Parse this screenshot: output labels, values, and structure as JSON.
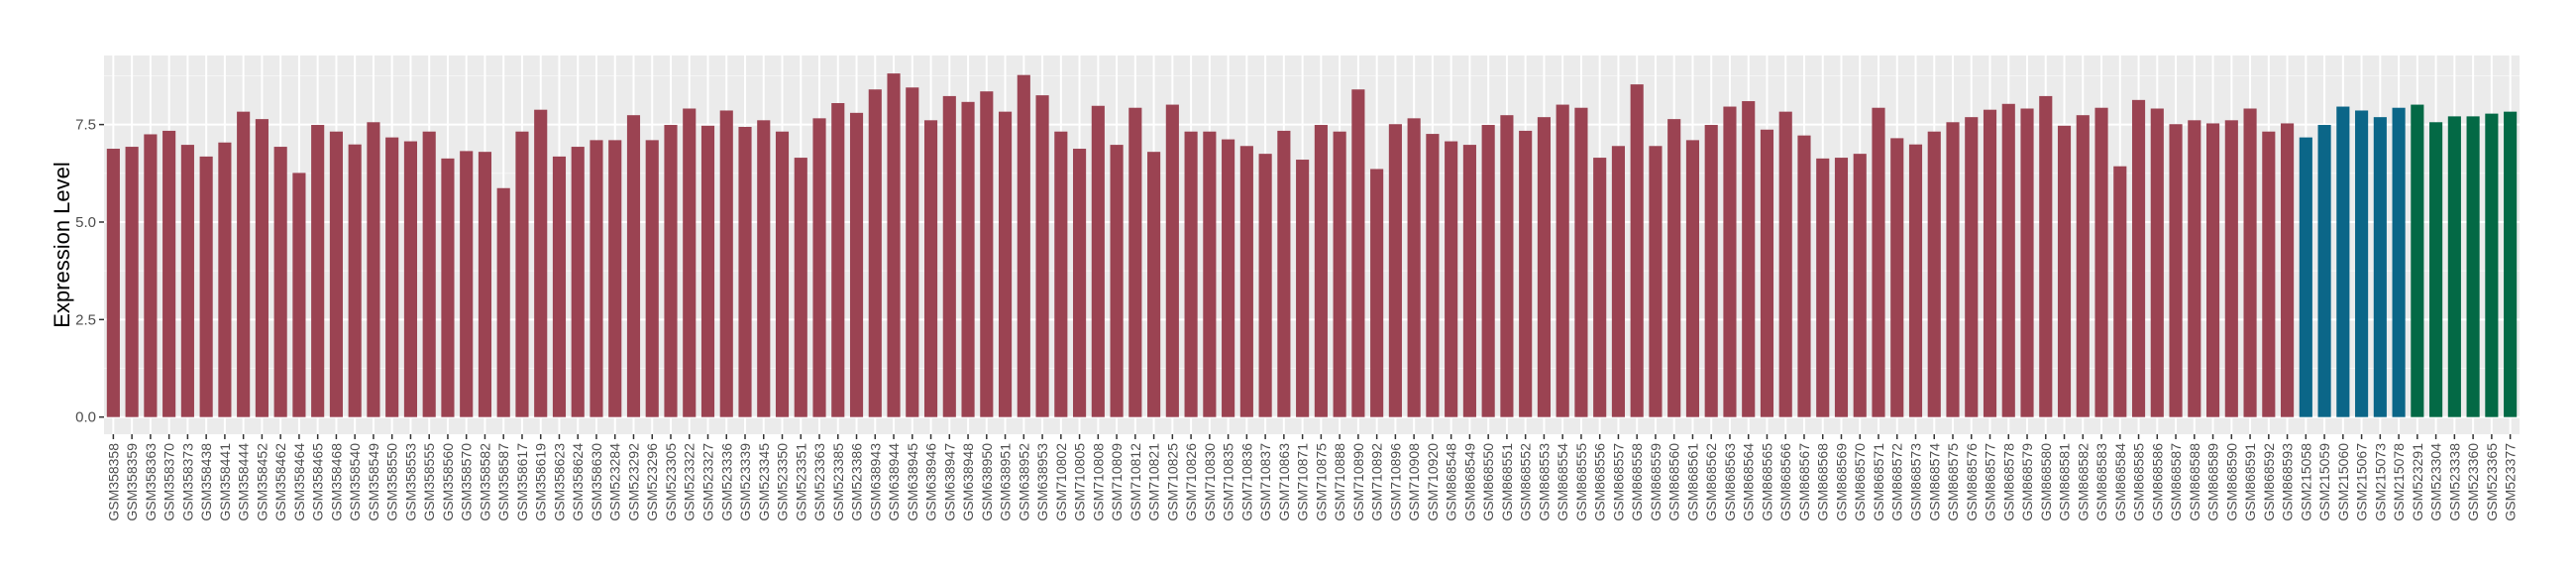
{
  "chart_data": {
    "type": "bar",
    "title": "",
    "xlabel": "",
    "ylabel": "Expression Level",
    "ylim": [
      -0.44,
      9.27
    ],
    "yticks": [
      "0.0",
      "2.5",
      "5.0",
      "7.5"
    ],
    "grid": true,
    "legend": "none",
    "colors": {
      "group1": "#9B4352",
      "group2": "#0B6688",
      "group3": "#036945"
    },
    "background": "#EBEBEB",
    "categories": [
      "GSM358358",
      "GSM358359",
      "GSM358363",
      "GSM358370",
      "GSM358373",
      "GSM358438",
      "GSM358441",
      "GSM358444",
      "GSM358452",
      "GSM358462",
      "GSM358464",
      "GSM358465",
      "GSM358468",
      "GSM358540",
      "GSM358549",
      "GSM358550",
      "GSM358553",
      "GSM358555",
      "GSM358560",
      "GSM358570",
      "GSM358582",
      "GSM358587",
      "GSM358617",
      "GSM358619",
      "GSM358623",
      "GSM358624",
      "GSM358630",
      "GSM523284",
      "GSM523292",
      "GSM523296",
      "GSM523305",
      "GSM523322",
      "GSM523327",
      "GSM523336",
      "GSM523339",
      "GSM523345",
      "GSM523350",
      "GSM523351",
      "GSM523363",
      "GSM523385",
      "GSM523386",
      "GSM638943",
      "GSM638944",
      "GSM638945",
      "GSM638946",
      "GSM638947",
      "GSM638948",
      "GSM638950",
      "GSM638951",
      "GSM638952",
      "GSM638953",
      "GSM710802",
      "GSM710805",
      "GSM710808",
      "GSM710809",
      "GSM710812",
      "GSM710821",
      "GSM710825",
      "GSM710826",
      "GSM710830",
      "GSM710835",
      "GSM710836",
      "GSM710837",
      "GSM710863",
      "GSM710871",
      "GSM710875",
      "GSM710888",
      "GSM710890",
      "GSM710892",
      "GSM710896",
      "GSM710908",
      "GSM710920",
      "GSM868548",
      "GSM868549",
      "GSM868550",
      "GSM868551",
      "GSM868552",
      "GSM868553",
      "GSM868554",
      "GSM868555",
      "GSM868556",
      "GSM868557",
      "GSM868558",
      "GSM868559",
      "GSM868560",
      "GSM868561",
      "GSM868562",
      "GSM868563",
      "GSM868564",
      "GSM868565",
      "GSM868566",
      "GSM868567",
      "GSM868568",
      "GSM868569",
      "GSM868570",
      "GSM868571",
      "GSM868572",
      "GSM868573",
      "GSM868574",
      "GSM868575",
      "GSM868576",
      "GSM868577",
      "GSM868578",
      "GSM868579",
      "GSM868580",
      "GSM868581",
      "GSM868582",
      "GSM868583",
      "GSM868584",
      "GSM868585",
      "GSM868586",
      "GSM868587",
      "GSM868588",
      "GSM868589",
      "GSM868590",
      "GSM868591",
      "GSM868592",
      "GSM868593",
      "GSM215058",
      "GSM215059",
      "GSM215060",
      "GSM215067",
      "GSM215073",
      "GSM215078",
      "GSM523291",
      "GSM523304",
      "GSM523338",
      "GSM523360",
      "GSM523365",
      "GSM523377"
    ],
    "values": [
      6.88,
      6.93,
      7.25,
      7.34,
      6.98,
      6.68,
      7.04,
      7.83,
      7.64,
      6.93,
      6.26,
      7.49,
      7.32,
      6.99,
      7.56,
      7.17,
      7.07,
      7.32,
      6.63,
      6.82,
      6.8,
      5.87,
      7.32,
      7.88,
      6.68,
      6.93,
      7.1,
      7.1,
      7.74,
      7.1,
      7.49,
      7.91,
      7.47,
      7.86,
      7.44,
      7.61,
      7.32,
      6.65,
      7.66,
      8.05,
      7.8,
      8.4,
      8.81,
      8.45,
      7.61,
      8.23,
      8.08,
      8.35,
      7.83,
      8.77,
      8.25,
      7.32,
      6.88,
      7.98,
      6.98,
      7.93,
      6.8,
      8.01,
      7.32,
      7.32,
      7.12,
      6.95,
      6.75,
      7.34,
      6.6,
      7.49,
      7.32,
      8.4,
      6.36,
      7.51,
      7.66,
      7.26,
      7.07,
      6.98,
      7.49,
      7.74,
      7.34,
      7.69,
      8.01,
      7.93,
      6.65,
      6.95,
      8.53,
      6.95,
      7.64,
      7.1,
      7.49,
      7.96,
      8.1,
      7.37,
      7.83,
      7.22,
      6.63,
      6.65,
      6.75,
      7.93,
      7.15,
      6.99,
      7.32,
      7.56,
      7.69,
      7.88,
      8.03,
      7.91,
      8.23,
      7.47,
      7.74,
      7.93,
      6.43,
      8.13,
      7.91,
      7.51,
      7.61,
      7.53,
      7.61,
      7.91,
      7.32,
      7.53,
      7.17,
      7.49,
      7.96,
      7.86,
      7.69,
      7.93,
      8.01,
      7.56,
      7.71,
      7.71,
      7.78,
      7.83
    ],
    "groups": [
      "group1",
      "group1",
      "group1",
      "group1",
      "group1",
      "group1",
      "group1",
      "group1",
      "group1",
      "group1",
      "group1",
      "group1",
      "group1",
      "group1",
      "group1",
      "group1",
      "group1",
      "group1",
      "group1",
      "group1",
      "group1",
      "group1",
      "group1",
      "group1",
      "group1",
      "group1",
      "group1",
      "group1",
      "group1",
      "group1",
      "group1",
      "group1",
      "group1",
      "group1",
      "group1",
      "group1",
      "group1",
      "group1",
      "group1",
      "group1",
      "group1",
      "group1",
      "group1",
      "group1",
      "group1",
      "group1",
      "group1",
      "group1",
      "group1",
      "group1",
      "group1",
      "group1",
      "group1",
      "group1",
      "group1",
      "group1",
      "group1",
      "group1",
      "group1",
      "group1",
      "group1",
      "group1",
      "group1",
      "group1",
      "group1",
      "group1",
      "group1",
      "group1",
      "group1",
      "group1",
      "group1",
      "group1",
      "group1",
      "group1",
      "group1",
      "group1",
      "group1",
      "group1",
      "group1",
      "group1",
      "group1",
      "group1",
      "group1",
      "group1",
      "group1",
      "group1",
      "group1",
      "group1",
      "group1",
      "group1",
      "group1",
      "group1",
      "group1",
      "group1",
      "group1",
      "group1",
      "group1",
      "group1",
      "group1",
      "group1",
      "group1",
      "group1",
      "group1",
      "group1",
      "group1",
      "group1",
      "group1",
      "group1",
      "group1",
      "group1",
      "group1",
      "group1",
      "group1",
      "group1",
      "group1",
      "group1",
      "group1",
      "group1",
      "group2",
      "group2",
      "group2",
      "group2",
      "group2",
      "group2",
      "group3",
      "group3",
      "group3",
      "group3",
      "group3",
      "group3"
    ]
  }
}
